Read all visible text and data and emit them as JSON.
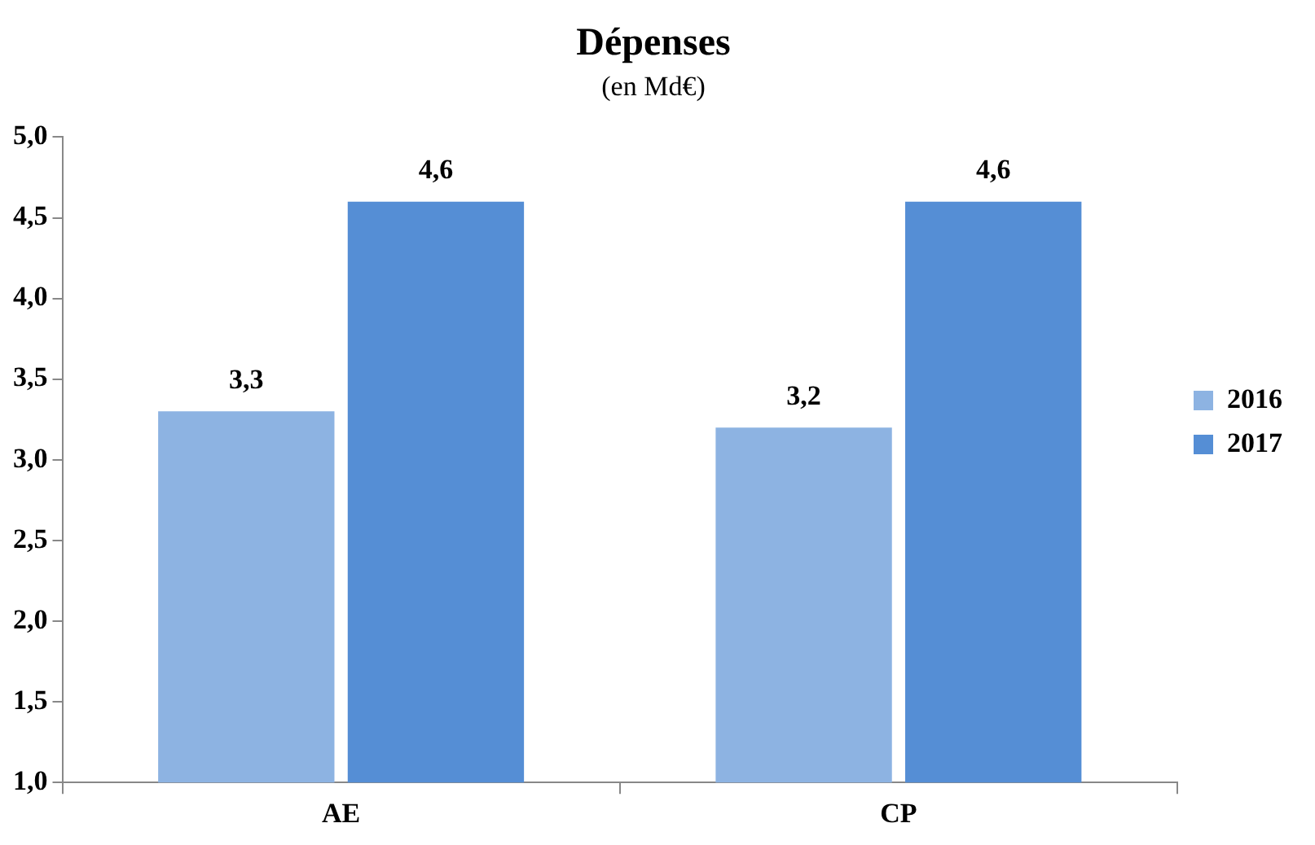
{
  "chart_data": {
    "type": "bar",
    "title": "Dépenses",
    "subtitle": "(en Md€)",
    "categories": [
      "AE",
      "CP"
    ],
    "series": [
      {
        "name": "2016",
        "color": "#8db3e2",
        "values": [
          3.3,
          3.2
        ],
        "value_labels": [
          "3,3",
          "3,2"
        ]
      },
      {
        "name": "2017",
        "color": "#558ed5",
        "values": [
          4.6,
          4.6
        ],
        "value_labels": [
          "4,6",
          "4,6"
        ]
      }
    ],
    "ylim": [
      1,
      5
    ],
    "yticks": [
      {
        "value": 1,
        "label": "1,0"
      },
      {
        "value": 1.5,
        "label": "1,5"
      },
      {
        "value": 2,
        "label": "2,0"
      },
      {
        "value": 2.5,
        "label": "2,5"
      },
      {
        "value": 3,
        "label": "3,0"
      },
      {
        "value": 3.5,
        "label": "3,5"
      },
      {
        "value": 4,
        "label": "4,0"
      },
      {
        "value": 4.5,
        "label": "4,5"
      },
      {
        "value": 5,
        "label": "5,0"
      }
    ],
    "grid": false,
    "legend": "right"
  }
}
